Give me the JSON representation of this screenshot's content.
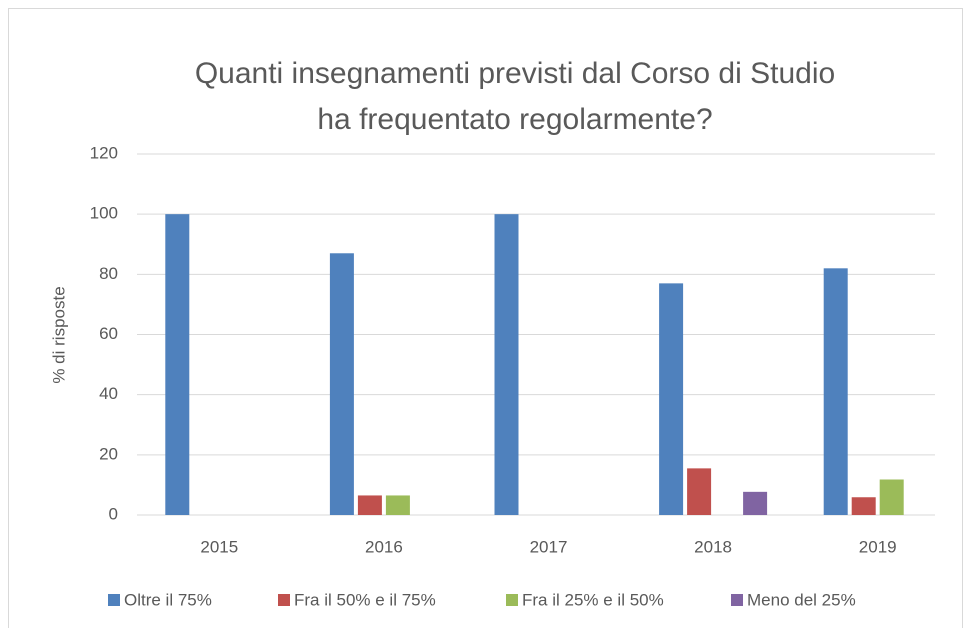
{
  "chart_data": {
    "type": "bar",
    "title": [
      "Quanti insegnamenti previsti dal Corso di Studio",
      "ha frequentato regolarmente?"
    ],
    "y_label": "% di risposte",
    "categories": [
      "2015",
      "2016",
      "2017",
      "2018",
      "2019"
    ],
    "series": [
      {
        "name": "Oltre il 75%",
        "color": "#4f81bd",
        "values": [
          100,
          87,
          100,
          77,
          82
        ]
      },
      {
        "name": "Fra il 50% e il 75%",
        "color": "#c0504d",
        "values": [
          0,
          6.5,
          0,
          15.5,
          5.9
        ]
      },
      {
        "name": "Fra il 25% e il 50%",
        "color": "#9bbb59",
        "values": [
          0,
          6.5,
          0,
          0,
          11.8
        ]
      },
      {
        "name": "Meno del 25%",
        "color": "#8064a2",
        "values": [
          0,
          0,
          0,
          7.7,
          0
        ]
      }
    ],
    "ylim": [
      0,
      120
    ],
    "yticks": [
      0,
      20,
      40,
      60,
      80,
      100,
      120
    ],
    "grid": true,
    "legend": "bottom"
  }
}
